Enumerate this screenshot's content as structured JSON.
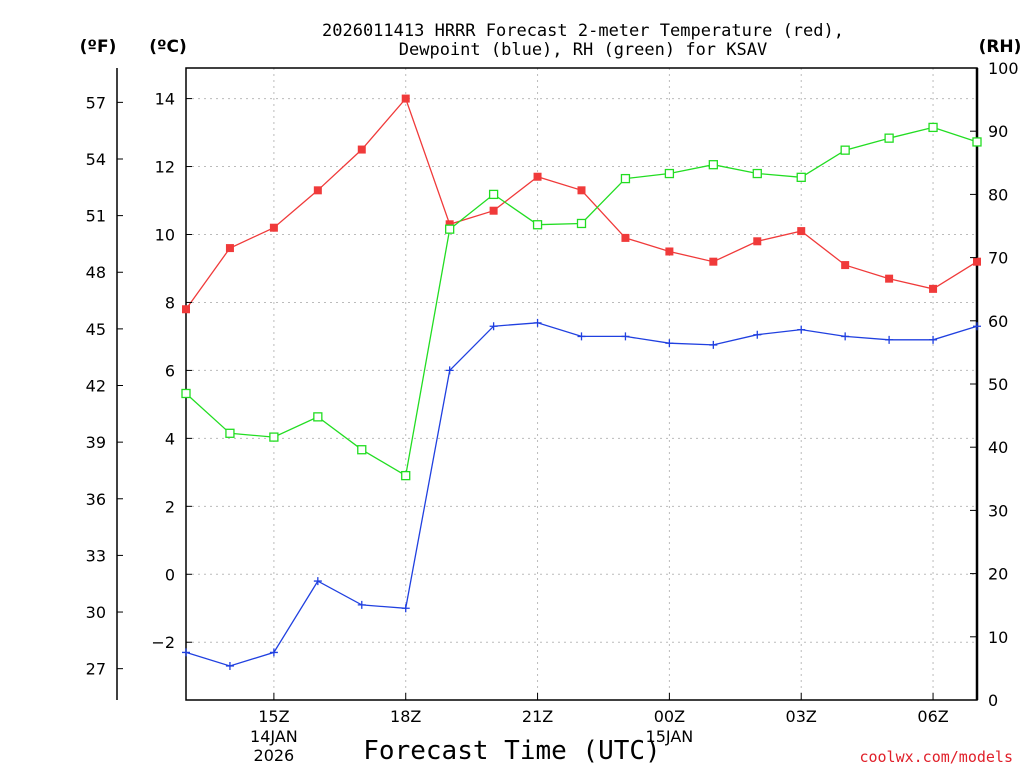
{
  "chart_data": {
    "type": "line",
    "title_line1": "2026011413 HRRR Forecast 2-meter Temperature (red),",
    "title_line2": "Dewpoint (blue), RH (green) for KSAV",
    "unit_f": "(ºF)",
    "unit_c": "(ºC)",
    "unit_rh": "(RH)",
    "xlabel": "Forecast Time (UTC)",
    "credit": "coolwx.com/models",
    "x_hours": [
      13,
      14,
      15,
      16,
      17,
      18,
      19,
      20,
      21,
      22,
      23,
      24,
      25,
      26,
      27,
      28,
      29,
      30,
      31
    ],
    "x_range": [
      13,
      31
    ],
    "x_ticks": [
      {
        "hour": 15,
        "label": "15Z",
        "sub1": "14JAN",
        "sub2": "2026"
      },
      {
        "hour": 18,
        "label": "18Z",
        "sub1": "",
        "sub2": ""
      },
      {
        "hour": 21,
        "label": "21Z",
        "sub1": "",
        "sub2": ""
      },
      {
        "hour": 24,
        "label": "00Z",
        "sub1": "15JAN",
        "sub2": ""
      },
      {
        "hour": 27,
        "label": "03Z",
        "sub1": "",
        "sub2": ""
      },
      {
        "hour": 30,
        "label": "06Z",
        "sub1": "",
        "sub2": ""
      }
    ],
    "c_range": [
      -3.7,
      14.9
    ],
    "c_ticks": [
      -2,
      0,
      2,
      4,
      6,
      8,
      10,
      12,
      14
    ],
    "c_tick_labels": [
      "−2",
      "0",
      "2",
      "4",
      "6",
      "8",
      "10",
      "12",
      "14"
    ],
    "f_ticks": [
      27,
      30,
      33,
      36,
      39,
      42,
      45,
      48,
      51,
      54,
      57
    ],
    "f_tick_labels": [
      "27",
      "30",
      "33",
      "36",
      "39",
      "42",
      "45",
      "48",
      "51",
      "54",
      "57"
    ],
    "rh_range": [
      0,
      100
    ],
    "rh_ticks": [
      0,
      10,
      20,
      30,
      40,
      50,
      60,
      70,
      80,
      90,
      100
    ],
    "rh_tick_labels": [
      "0",
      "10",
      "20",
      "30",
      "40",
      "50",
      "60",
      "70",
      "80",
      "90",
      "100"
    ],
    "series": [
      {
        "name": "Temperature",
        "axis": "c",
        "color": "#f03a3a",
        "marker": "filled-square",
        "values": [
          7.8,
          9.6,
          10.2,
          11.3,
          12.5,
          14.0,
          10.3,
          10.7,
          11.7,
          11.3,
          9.9,
          9.5,
          9.2,
          9.8,
          10.1,
          9.1,
          8.7,
          8.4,
          9.2
        ]
      },
      {
        "name": "Dewpoint",
        "axis": "c",
        "color": "#2040e0",
        "marker": "plus",
        "values": [
          -2.3,
          -2.7,
          -2.3,
          -0.2,
          -0.9,
          -1.0,
          6.0,
          7.3,
          7.4,
          7.0,
          7.0,
          6.8,
          6.75,
          7.05,
          7.2,
          7.0,
          6.9,
          6.9,
          7.3
        ]
      },
      {
        "name": "RH",
        "axis": "rh",
        "color": "#22dd22",
        "marker": "open-square",
        "values": [
          48.5,
          42.2,
          41.6,
          44.8,
          39.6,
          35.5,
          74.5,
          80.0,
          75.2,
          75.4,
          82.5,
          83.3,
          84.7,
          83.3,
          82.7,
          87.0,
          88.9,
          90.6,
          88.3
        ]
      }
    ]
  }
}
